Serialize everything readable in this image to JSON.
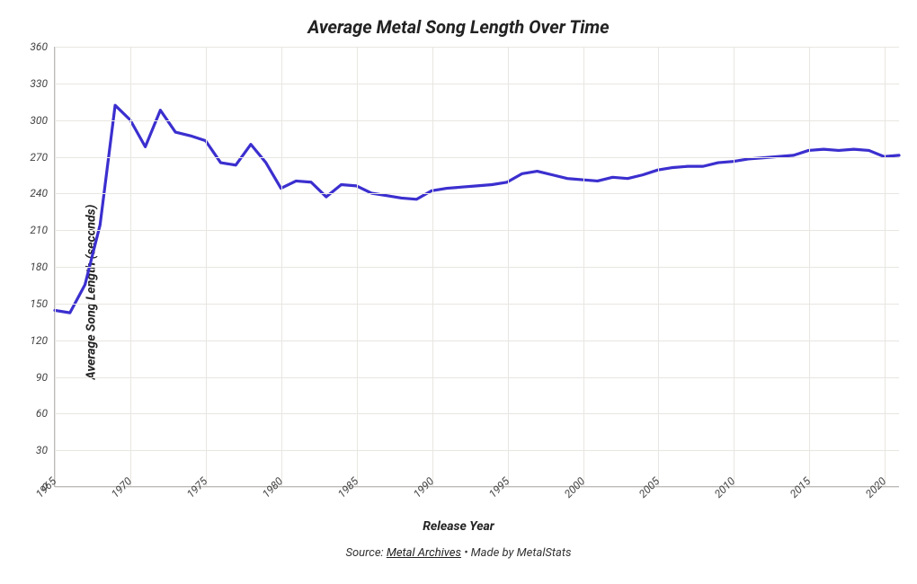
{
  "chart": {
    "type": "line",
    "title": "Average Metal Song Length Over Time",
    "xlabel": "Release Year",
    "ylabel": "Average Song Length (seconds)",
    "title_fontsize": 20,
    "label_fontsize": 14,
    "tick_fontsize": 12,
    "font_style": "italic",
    "font_weight_title": 700,
    "background_color": "#ffffff",
    "grid_color": "#e8e6e1",
    "axis_color": "#bbbbbb",
    "line_color": "#3b2fcf",
    "line_width": 3.2,
    "xlim": [
      1965,
      2021
    ],
    "ylim": [
      0,
      360
    ],
    "xtick_step": 5,
    "ytick_step": 30,
    "xticks": [
      1965,
      1970,
      1975,
      1980,
      1985,
      1990,
      1995,
      2000,
      2005,
      2010,
      2015,
      2020
    ],
    "yticks": [
      0,
      30,
      60,
      90,
      120,
      150,
      180,
      210,
      240,
      270,
      300,
      330,
      360
    ],
    "x": [
      1965,
      1966,
      1967,
      1968,
      1969,
      1970,
      1971,
      1972,
      1973,
      1974,
      1975,
      1976,
      1977,
      1978,
      1979,
      1980,
      1981,
      1982,
      1983,
      1984,
      1985,
      1986,
      1987,
      1988,
      1989,
      1990,
      1991,
      1992,
      1993,
      1994,
      1995,
      1996,
      1997,
      1998,
      1999,
      2000,
      2001,
      2002,
      2003,
      2004,
      2005,
      2006,
      2007,
      2008,
      2009,
      2010,
      2011,
      2012,
      2013,
      2014,
      2015,
      2016,
      2017,
      2018,
      2019,
      2020,
      2021
    ],
    "y": [
      144,
      142,
      165,
      214,
      312,
      300,
      278,
      308,
      290,
      287,
      283,
      265,
      263,
      280,
      265,
      244,
      250,
      249,
      237,
      247,
      246,
      240,
      238,
      236,
      235,
      242,
      244,
      245,
      246,
      247,
      249,
      256,
      258,
      255,
      252,
      251,
      250,
      253,
      252,
      255,
      259,
      261,
      262,
      262,
      265,
      266,
      268,
      269,
      270,
      271,
      275,
      276,
      275,
      276,
      275,
      270,
      271
    ]
  },
  "source": {
    "prefix": "Source: ",
    "link_text": "Metal Archives",
    "suffix": " • Made by MetalStats"
  }
}
